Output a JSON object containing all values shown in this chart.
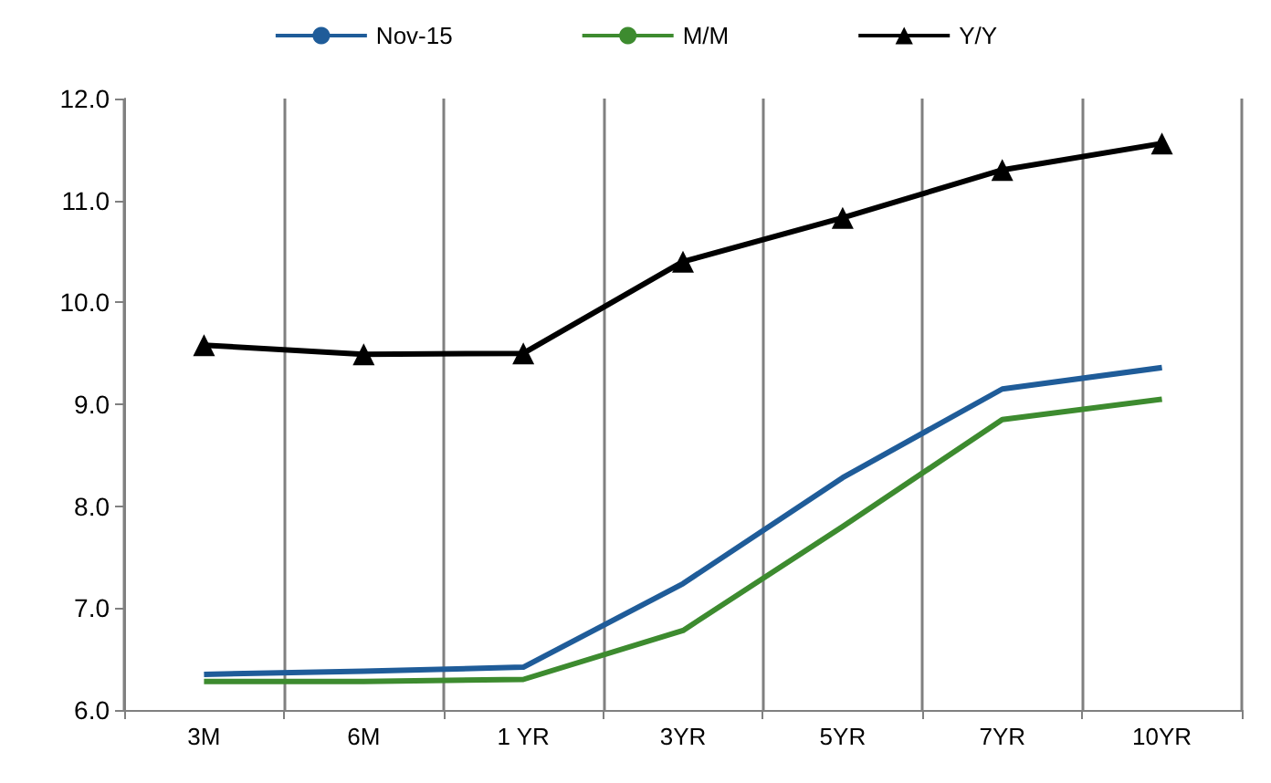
{
  "chart_data": {
    "type": "line",
    "categories": [
      "3M",
      "6M",
      "1 YR",
      "3YR",
      "5YR",
      "7YR",
      "10YR"
    ],
    "series": [
      {
        "name": "Nov-15",
        "color": "#1f5c99",
        "marker": "none",
        "values": [
          6.35,
          6.38,
          6.42,
          7.24,
          8.28,
          9.15,
          9.36
        ]
      },
      {
        "name": "M/M",
        "color": "#3d8b2f",
        "marker": "none",
        "values": [
          6.28,
          6.28,
          6.3,
          6.78,
          7.8,
          8.85,
          9.05
        ]
      },
      {
        "name": "Y/Y",
        "color": "#000000",
        "marker": "triangle",
        "values": [
          9.58,
          9.49,
          9.5,
          10.4,
          10.83,
          11.3,
          11.56
        ]
      }
    ],
    "ylim": [
      6,
      12
    ],
    "yticks": [
      {
        "value": 6,
        "label": "6.0"
      },
      {
        "value": 7,
        "label": "7.0"
      },
      {
        "value": 8,
        "label": "8.0"
      },
      {
        "value": 9,
        "label": "9.0"
      },
      {
        "value": 10,
        "label": "10.0"
      },
      {
        "value": 11,
        "label": "11.0"
      },
      {
        "value": 12,
        "label": "12.0"
      }
    ],
    "grid": "x",
    "legend": "top"
  }
}
